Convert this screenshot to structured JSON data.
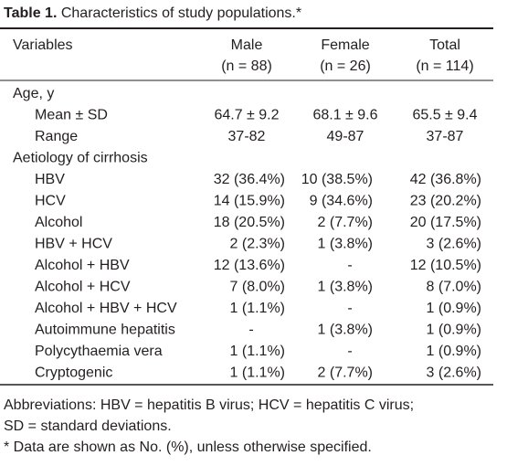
{
  "title": {
    "label": "Table 1.",
    "text": "Characteristics of study populations.*"
  },
  "table": {
    "header": [
      "Variables",
      "Male",
      "Female",
      "Total"
    ],
    "header_sub": [
      "(n = 88)",
      "(n = 26)",
      "(n = 114)"
    ],
    "sections": [
      {
        "label": "Age, y",
        "rows": [
          {
            "label": "Mean ± SD",
            "values": [
              "64.7 ± 9.2",
              "68.1 ± 9.6",
              "65.5 ± 9.4"
            ]
          },
          {
            "label": "Range",
            "values": [
              "37-82",
              "49-87",
              "37-87"
            ]
          }
        ]
      },
      {
        "label": "Aetiology of cirrhosis",
        "rows": [
          {
            "label": "HBV",
            "values": [
              "32 (36.4%)",
              "10 (38.5%)",
              "42 (36.8%)"
            ]
          },
          {
            "label": "HCV",
            "values": [
              "14 (15.9%)",
              "9 (34.6%)",
              "23 (20.2%)"
            ]
          },
          {
            "label": "Alcohol",
            "values": [
              "18 (20.5%)",
              "2 (7.7%)",
              "20 (17.5%)"
            ]
          },
          {
            "label": "HBV + HCV",
            "values": [
              "2 (2.3%)",
              "1 (3.8%)",
              "3 (2.6%)"
            ]
          },
          {
            "label": "Alcohol + HBV",
            "values": [
              "12 (13.6%)",
              "-",
              "12 (10.5%)"
            ]
          },
          {
            "label": "Alcohol + HCV",
            "values": [
              "7 (8.0%)",
              "1 (3.8%)",
              "8 (7.0%)"
            ]
          },
          {
            "label": "Alcohol + HBV + HCV",
            "values": [
              "1 (1.1%)",
              "-",
              "1 (0.9%)"
            ]
          },
          {
            "label": "Autoimmune hepatitis",
            "values": [
              "-",
              "1 (3.8%)",
              "1 (0.9%)"
            ]
          },
          {
            "label": "Polycythaemia vera",
            "values": [
              "1 (1.1%)",
              "-",
              "1 (0.9%)"
            ]
          },
          {
            "label": "Cryptogenic",
            "values": [
              "1 (1.1%)",
              "2 (7.7%)",
              "3 (2.6%)"
            ]
          }
        ]
      }
    ]
  },
  "footnotes": [
    "Abbreviations: HBV = hepatitis B virus; HCV = hepatitis C virus;",
    "SD = standard deviations.",
    "* Data are shown as No. (%), unless otherwise specified."
  ]
}
